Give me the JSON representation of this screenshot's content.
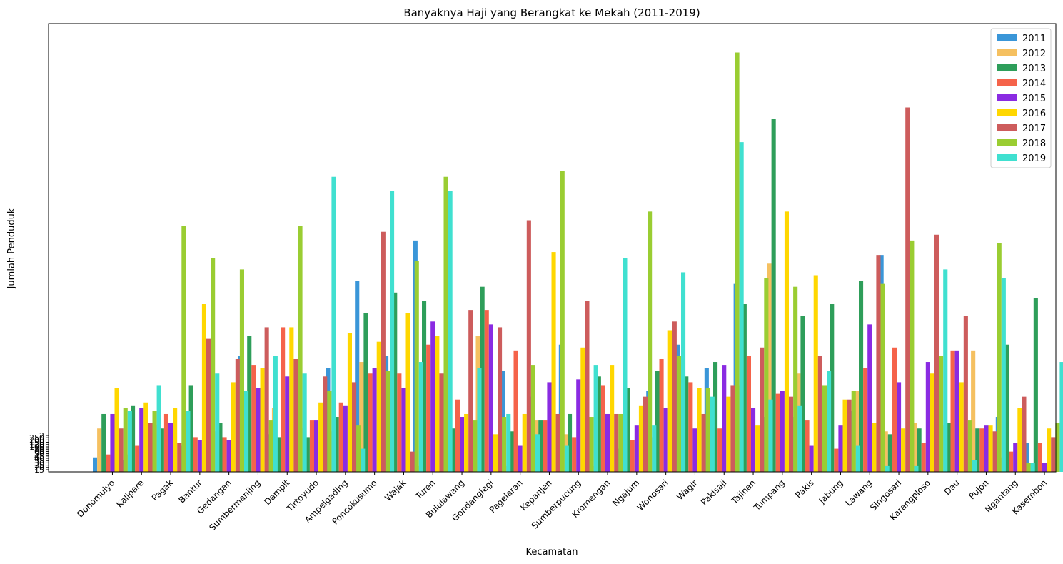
{
  "chart_data": {
    "type": "bar",
    "title": "Banyaknya Haji yang Berangkat ke Mekah (2011-2019)",
    "xlabel": "Kecamatan",
    "ylabel": "Jumlah Penduduk",
    "legend_position": "top-right",
    "grid": false,
    "ylim": [
      0,
      155
    ],
    "y_tick_labels": [
      "15",
      "20",
      "25",
      "30",
      "35",
      "40",
      "45",
      "50",
      "60",
      "80",
      "100",
      "120",
      "150",
      "200",
      "250",
      "2"
    ],
    "categories": [
      "Donomulyo",
      "Kalipare",
      "Pagak",
      "Bantur",
      "Gedangan",
      "Sumbermanjing",
      "Dampit",
      "Tirtoyudo",
      "Ampelgading",
      "Poncokusumo",
      "Wajak",
      "Turen",
      "Bululawang",
      "Gondanglegi",
      "Pagelaran",
      "Kepanjen",
      "Sumberpucung",
      "Kromengan",
      "Ngajum",
      "Wonosari",
      "Wagir",
      "Pakisaji",
      "Tajinan",
      "Tumpang",
      "Pakis",
      "Jabung",
      "Lawang",
      "Singosari",
      "Karangploso",
      "Dau",
      "Pujon",
      "Ngantang",
      "Kasembon"
    ],
    "series": [
      {
        "name": "2011",
        "color": "#3a96d8",
        "values": [
          5,
          4,
          14,
          9,
          35,
          40,
          13,
          18,
          36,
          66,
          40,
          80,
          29,
          14,
          35,
          26,
          44,
          15,
          8,
          28,
          44,
          36,
          65,
          19,
          19,
          19,
          21,
          75,
          18,
          32,
          11,
          19,
          10
        ]
      },
      {
        "name": "2012",
        "color": "#f5c060",
        "values": [
          15,
          6,
          16,
          13,
          14,
          16,
          22,
          15,
          14,
          38,
          28,
          2,
          37,
          47,
          2,
          18,
          13,
          2,
          14,
          12,
          14,
          25,
          30,
          72,
          34,
          24,
          28,
          14,
          17,
          16,
          42,
          5,
          3
        ]
      },
      {
        "name": "2013",
        "color": "#2e9e5a",
        "values": [
          20,
          23,
          15,
          30,
          17,
          47,
          12,
          12,
          19,
          55,
          62,
          59,
          15,
          64,
          14,
          18,
          20,
          33,
          29,
          35,
          33,
          38,
          58,
          122,
          54,
          58,
          66,
          13,
          15,
          17,
          15,
          44,
          60
        ]
      },
      {
        "name": "2014",
        "color": "#f5634a",
        "values": [
          6,
          9,
          20,
          12,
          12,
          37,
          50,
          18,
          24,
          34,
          34,
          44,
          25,
          56,
          42,
          18,
          12,
          30,
          11,
          39,
          31,
          15,
          40,
          27,
          18,
          8,
          36,
          43,
          10,
          42,
          15,
          7,
          10
        ]
      },
      {
        "name": "2015",
        "color": "#8a2be2",
        "values": [
          20,
          22,
          17,
          11,
          11,
          29,
          33,
          18,
          23,
          36,
          29,
          52,
          19,
          51,
          9,
          31,
          32,
          20,
          16,
          22,
          15,
          37,
          22,
          28,
          9,
          16,
          51,
          31,
          38,
          42,
          16,
          10,
          3
        ]
      },
      {
        "name": "2016",
        "color": "#ffd700",
        "values": [
          29,
          24,
          22,
          58,
          31,
          36,
          50,
          24,
          48,
          45,
          55,
          47,
          20,
          13,
          20,
          76,
          43,
          37,
          23,
          49,
          29,
          26,
          16,
          90,
          68,
          25,
          17,
          15,
          34,
          31,
          16,
          22,
          15
        ]
      },
      {
        "name": "2017",
        "color": "#cd5c5c",
        "values": [
          15,
          17,
          10,
          46,
          39,
          50,
          39,
          33,
          31,
          83,
          7,
          34,
          56,
          50,
          87,
          20,
          59,
          20,
          26,
          52,
          20,
          30,
          43,
          26,
          40,
          25,
          75,
          126,
          82,
          54,
          14,
          26,
          12
        ]
      },
      {
        "name": "2018",
        "color": "#9acd32",
        "values": [
          22,
          21,
          85,
          74,
          70,
          18,
          85,
          28,
          16,
          35,
          73,
          102,
          18,
          19,
          37,
          104,
          19,
          20,
          90,
          40,
          29,
          145,
          67,
          64,
          30,
          28,
          65,
          80,
          40,
          18,
          79,
          3,
          17
        ]
      },
      {
        "name": "2019",
        "color": "#40e0d0",
        "values": [
          21,
          30,
          21,
          34,
          28,
          40,
          34,
          102,
          8,
          97,
          38,
          97,
          36,
          20,
          13,
          9,
          37,
          74,
          16,
          69,
          26,
          114,
          25,
          23,
          35,
          9,
          2,
          2,
          70,
          4,
          67,
          3,
          38
        ]
      }
    ]
  }
}
